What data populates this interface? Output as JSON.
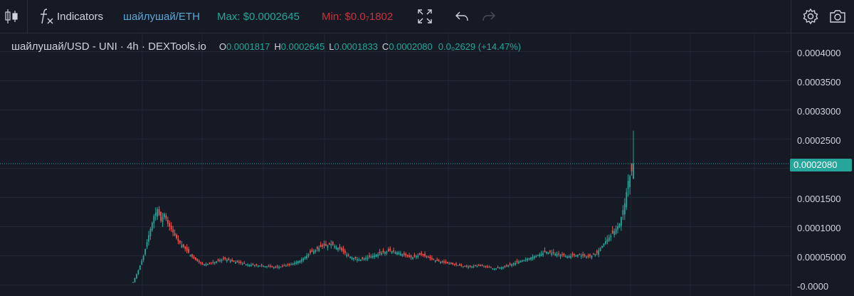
{
  "toolbar": {
    "candles_icon": "candlestick-icon",
    "indicators_icon": "fx-icon",
    "indicators_label": "Indicators",
    "pair_label": "шайлушай/ETH",
    "max_label": "Max: $0.0002645",
    "min_label": "Min: $0.0₇1802",
    "fullscreen_icon": "fullscreen-icon",
    "undo_icon": "undo-icon",
    "redo_icon": "redo-icon",
    "settings_icon": "gear-icon",
    "snapshot_icon": "camera-icon",
    "colors": {
      "pair": "#5aa7d8",
      "max": "#26a69a",
      "min": "#c2363f"
    }
  },
  "legend": {
    "title": "шайлушай/USD - UNI · 4h · DEXTools.io",
    "o_key": "O",
    "o_val": "0.0001817",
    "h_key": "H",
    "h_val": "0.0002645",
    "l_key": "L",
    "l_val": "0.0001833",
    "c_key": "C",
    "c_val": "0.0002080",
    "change": "0.0₀2629 (+14.47%)"
  },
  "last_price": "0.0002080",
  "chart_data": {
    "type": "candlestick",
    "y_ticks": [
      "0.0004000",
      "0.0003500",
      "0.0003000",
      "0.0002500",
      "0.0001500",
      "0.0001000",
      "0.00005000",
      "-0.0000"
    ],
    "ylim": [
      0,
      0.0004
    ],
    "grid": true,
    "colors": {
      "up": "#26a69a",
      "down": "#ef5350",
      "grid": "#232733",
      "axis": "#2a2e39"
    },
    "anchors": [
      [
        0,
        5e-06
      ],
      [
        3,
        2.5e-05
      ],
      [
        6,
        5e-05
      ],
      [
        9,
        8.5e-05
      ],
      [
        12,
        0.000118
      ],
      [
        14,
        0.00013
      ],
      [
        16,
        0.00011
      ],
      [
        18,
        0.000122
      ],
      [
        20,
        0.000105
      ],
      [
        23,
        9e-05
      ],
      [
        26,
        7.5e-05
      ],
      [
        30,
        6.2e-05
      ],
      [
        35,
        4.5e-05
      ],
      [
        40,
        3.5e-05
      ],
      [
        46,
        3.8e-05
      ],
      [
        52,
        4.5e-05
      ],
      [
        58,
        4e-05
      ],
      [
        66,
        3.5e-05
      ],
      [
        74,
        3.3e-05
      ],
      [
        82,
        3e-05
      ],
      [
        90,
        3.4e-05
      ],
      [
        96,
        4.2e-05
      ],
      [
        102,
        5.5e-05
      ],
      [
        108,
        6.5e-05
      ],
      [
        114,
        7e-05
      ],
      [
        119,
        6.2e-05
      ],
      [
        124,
        5e-05
      ],
      [
        130,
        4.3e-05
      ],
      [
        136,
        4.8e-05
      ],
      [
        142,
        5.4e-05
      ],
      [
        148,
        5.9e-05
      ],
      [
        154,
        5.4e-05
      ],
      [
        160,
        4.7e-05
      ],
      [
        166,
        5.2e-05
      ],
      [
        172,
        4.4e-05
      ],
      [
        178,
        3.9e-05
      ],
      [
        185,
        3.5e-05
      ],
      [
        192,
        3.1e-05
      ],
      [
        200,
        3.3e-05
      ],
      [
        208,
        2.8e-05
      ],
      [
        214,
        3.1e-05
      ],
      [
        220,
        3.8e-05
      ],
      [
        226,
        4.4e-05
      ],
      [
        232,
        5e-05
      ],
      [
        238,
        5.7e-05
      ],
      [
        244,
        5.3e-05
      ],
      [
        250,
        4.9e-05
      ],
      [
        256,
        5.2e-05
      ],
      [
        262,
        4.8e-05
      ],
      [
        267,
        5.5e-05
      ],
      [
        272,
        7.5e-05
      ],
      [
        276,
        8.8e-05
      ],
      [
        280,
        0.000105
      ],
      [
        283,
        0.00014
      ],
      [
        285,
        0.000178
      ],
      [
        287,
        0.000195
      ],
      [
        288,
        0.000208
      ]
    ],
    "last_candle": {
      "open": 0.0001817,
      "high": 0.0002645,
      "low": 0.0001833,
      "close": 0.000208
    }
  }
}
